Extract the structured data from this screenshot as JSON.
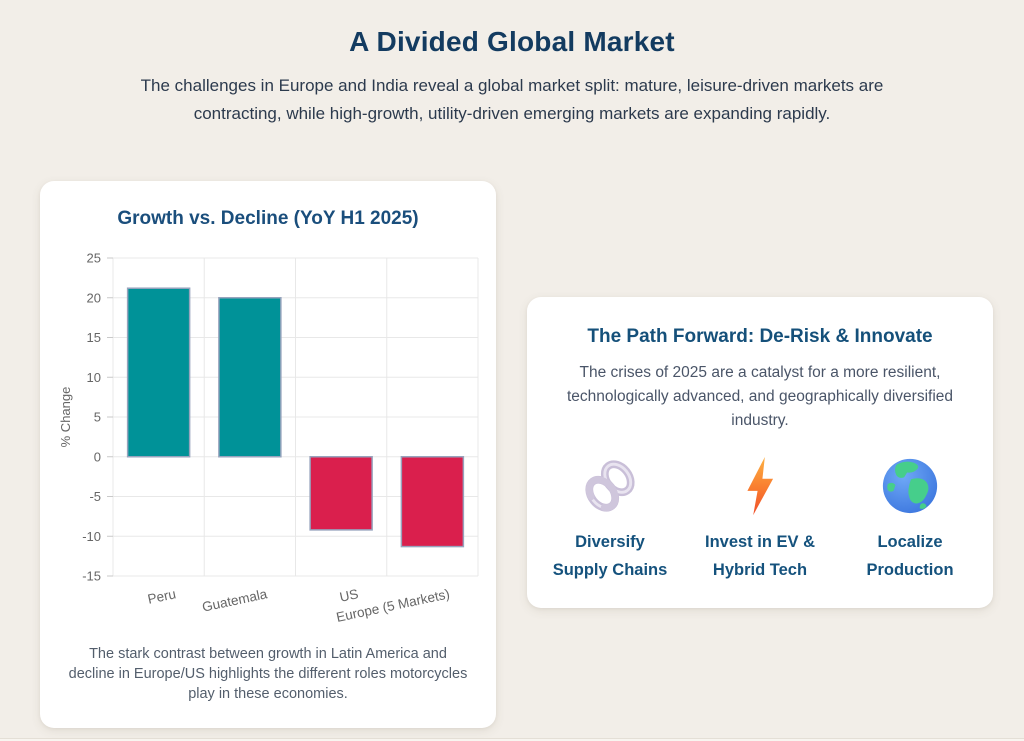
{
  "page": {
    "title": "A Divided Global Market",
    "subtitle": "The challenges in Europe and India reveal a global market split: mature, leisure-driven markets are contracting, while high-growth, utility-driven emerging markets are expanding rapidly."
  },
  "chart_card": {
    "title": "Growth vs. Decline (YoY H1 2025)",
    "caption": "The stark contrast between growth in Latin America and decline in Europe/US highlights the different roles motorcycles play in these economies."
  },
  "chart_data": {
    "type": "bar",
    "title": "Growth vs. Decline (YoY H1 2025)",
    "categories": [
      "Peru",
      "Guatemala",
      "US",
      "Europe (5 Markets)"
    ],
    "values": [
      21.2,
      20,
      -9.2,
      -11.3
    ],
    "xlabel": "",
    "ylabel": "% Change",
    "ylim": [
      -15,
      25
    ],
    "ytick_step": 5,
    "grid": true,
    "legend": "none",
    "positive_color": "#009298",
    "negative_color": "#DA1F4D",
    "bar_border_color": "#97A3BD",
    "grid_color": "#E8E8E8",
    "tick_color": "#C9C9C9",
    "axis_text_color": "#666666"
  },
  "path_card": {
    "title": "The Path Forward: De-Risk & Innovate",
    "body": "The crises of 2025 are a catalyst for a more resilient, technologically advanced, and geographically diversified industry.",
    "items": [
      {
        "icon": "chain-link-icon",
        "label": "Diversify Supply Chains",
        "label_line1": "Diversify",
        "label_line2": "Supply Chains"
      },
      {
        "icon": "lightning-bolt-icon",
        "label": "Invest in EV & Hybrid Tech",
        "label_line1": "Invest in EV &",
        "label_line2": "Hybrid Tech"
      },
      {
        "icon": "globe-icon",
        "label": "Localize Production",
        "label_line1": "Localize",
        "label_line2": "Production"
      }
    ]
  },
  "colors": {
    "background": "#F2EEE8",
    "card": "#FFFFFF",
    "main_title": "#133B60",
    "card_title": "#1A4E7C",
    "item_label": "#15527D",
    "body_text": "#4A5568",
    "caption_text": "#535E6C"
  }
}
